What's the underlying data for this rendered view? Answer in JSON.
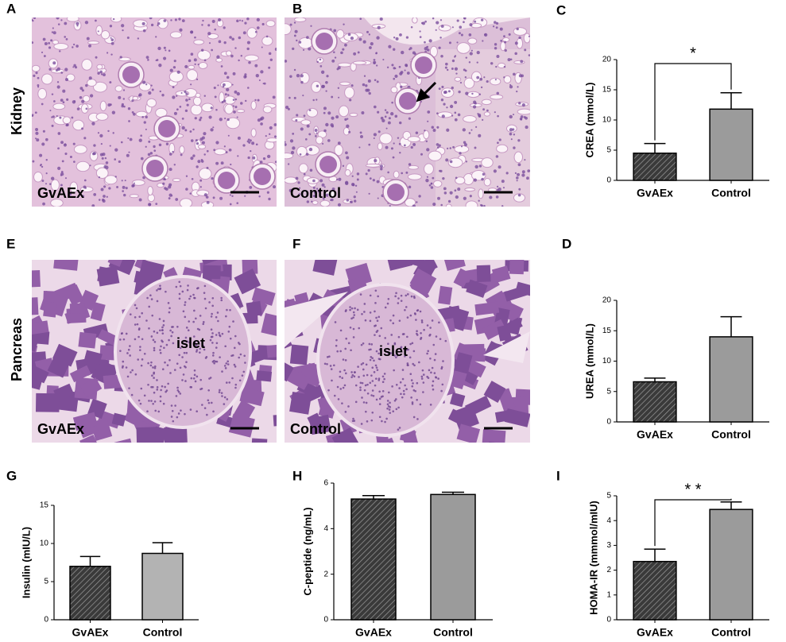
{
  "row_labels": [
    "Kidney",
    "Pancreas"
  ],
  "image_panels": [
    {
      "letter": "A",
      "label": "GvAEx"
    },
    {
      "letter": "B",
      "label": "Control"
    },
    {
      "letter": "E",
      "label": "GvAEx",
      "inner_label": "islet"
    },
    {
      "letter": "F",
      "label": "Control",
      "inner_label": "islet"
    }
  ],
  "chart_data": [
    {
      "type": "bar",
      "letter": "C",
      "y_label": "CREA (mmol/L)",
      "categories": [
        "GvAEx",
        "Control"
      ],
      "values": [
        4.5,
        11.8
      ],
      "errors": [
        1.6,
        2.7
      ],
      "colors": [
        "#3a3a3a",
        "#9b9b9b"
      ],
      "hatched": [
        true,
        false
      ],
      "ylim": [
        0,
        20
      ],
      "yticks": [
        0,
        5,
        10,
        15,
        20
      ],
      "significance": "*"
    },
    {
      "type": "bar",
      "letter": "D",
      "y_label": "UREA (mmol/L)",
      "categories": [
        "GvAEx",
        "Control"
      ],
      "values": [
        6.6,
        14.0
      ],
      "errors": [
        0.6,
        3.3
      ],
      "colors": [
        "#3a3a3a",
        "#9b9b9b"
      ],
      "hatched": [
        true,
        false
      ],
      "ylim": [
        0,
        20
      ],
      "yticks": [
        0,
        5,
        10,
        15,
        20
      ]
    },
    {
      "type": "bar",
      "letter": "G",
      "y_label": "Insulin (mIU/L)",
      "categories": [
        "GvAEx",
        "Control"
      ],
      "values": [
        7.0,
        8.7
      ],
      "errors": [
        1.3,
        1.4
      ],
      "colors": [
        "#3a3a3a",
        "#b3b3b3"
      ],
      "hatched": [
        true,
        false
      ],
      "ylim": [
        0,
        15
      ],
      "yticks": [
        0,
        5,
        10,
        15
      ]
    },
    {
      "type": "bar",
      "letter": "H",
      "y_label": "C-peptide (ng/mL)",
      "categories": [
        "GvAEx",
        "Control"
      ],
      "values": [
        5.3,
        5.5
      ],
      "errors": [
        0.15,
        0.1
      ],
      "colors": [
        "#3a3a3a",
        "#9b9b9b"
      ],
      "hatched": [
        true,
        false
      ],
      "ylim": [
        0,
        6
      ],
      "yticks": [
        0,
        2,
        4,
        6
      ]
    },
    {
      "type": "bar",
      "letter": "I",
      "y_label": "HOMA-IR (mmmol/mIU)",
      "categories": [
        "GvAEx",
        "Control"
      ],
      "values": [
        2.35,
        4.45
      ],
      "errors": [
        0.5,
        0.3
      ],
      "colors": [
        "#3a3a3a",
        "#9b9b9b"
      ],
      "hatched": [
        true,
        false
      ],
      "ylim": [
        0,
        5
      ],
      "yticks": [
        0,
        1,
        2,
        3,
        4,
        5
      ],
      "significance": "* *"
    }
  ]
}
